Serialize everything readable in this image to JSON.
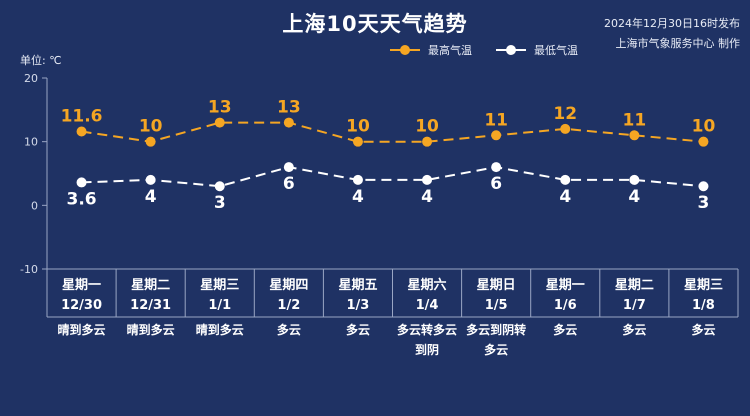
{
  "header": {
    "title": "上海10天天气趋势",
    "publish_time": "2024年12月30日16时发布",
    "publisher": "上海市气象服务中心 制作",
    "unit": "单位: ℃"
  },
  "colors": {
    "background": "#1f3264",
    "high": "#f5a623",
    "low": "#ffffff"
  },
  "chart_data": {
    "type": "line",
    "title": "上海10天天气趋势",
    "ylabel": "单位: ℃",
    "ylim": [
      -10,
      20
    ],
    "yticks": [
      20,
      10,
      0,
      -10
    ],
    "legend_position": "top-right",
    "days": [
      {
        "weekday": "星期一",
        "date": "12/30",
        "weather": [
          "晴到多云"
        ]
      },
      {
        "weekday": "星期二",
        "date": "12/31",
        "weather": [
          "晴到多云"
        ]
      },
      {
        "weekday": "星期三",
        "date": "1/1",
        "weather": [
          "晴到多云"
        ]
      },
      {
        "weekday": "星期四",
        "date": "1/2",
        "weather": [
          "多云"
        ]
      },
      {
        "weekday": "星期五",
        "date": "1/3",
        "weather": [
          "多云"
        ]
      },
      {
        "weekday": "星期六",
        "date": "1/4",
        "weather": [
          "多云转多云",
          "到阴"
        ]
      },
      {
        "weekday": "星期日",
        "date": "1/5",
        "weather": [
          "多云到阴转",
          "多云"
        ]
      },
      {
        "weekday": "星期一",
        "date": "1/6",
        "weather": [
          "多云"
        ]
      },
      {
        "weekday": "星期二",
        "date": "1/7",
        "weather": [
          "多云"
        ]
      },
      {
        "weekday": "星期三",
        "date": "1/8",
        "weather": [
          "多云"
        ]
      }
    ],
    "series": [
      {
        "name": "最高气温",
        "color": "#f5a623",
        "values": [
          11.6,
          10,
          13,
          13,
          10,
          10,
          11,
          12,
          11,
          10
        ]
      },
      {
        "name": "最低气温",
        "color": "#ffffff",
        "values": [
          3.6,
          4,
          3,
          6,
          4,
          4,
          6,
          4,
          4,
          3
        ]
      }
    ]
  }
}
